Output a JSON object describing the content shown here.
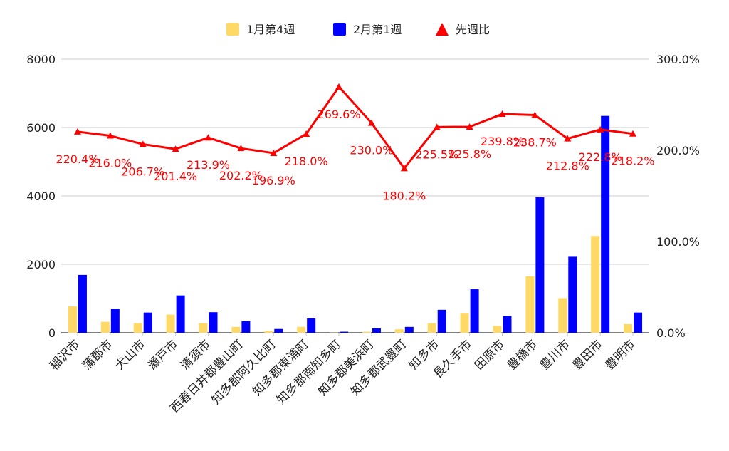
{
  "chart_data": {
    "type": "bar",
    "categories": [
      "稲沢市",
      "蒲郡市",
      "犬山市",
      "瀬戸市",
      "清須市",
      "西春日井郡豊山町",
      "知多郡阿久比町",
      "知多郡東浦町",
      "知多郡南知多町",
      "知多郡美浜町",
      "知多郡武豊町",
      "知多市",
      "長久手市",
      "田原市",
      "豊橋市",
      "豊川市",
      "豊田市",
      "豊明市"
    ],
    "series": [
      {
        "name": "1月第4週",
        "type": "bar",
        "axis": "left",
        "color": "#FFD966",
        "values": [
          770,
          320,
          280,
          530,
          280,
          170,
          60,
          170,
          5,
          30,
          100,
          280,
          560,
          200,
          1650,
          1010,
          2830,
          250
        ]
      },
      {
        "name": "2月第1週",
        "type": "bar",
        "axis": "left",
        "color": "#0000FF",
        "values": [
          1690,
          700,
          590,
          1090,
          600,
          340,
          110,
          420,
          30,
          130,
          170,
          670,
          1270,
          490,
          3960,
          2220,
          6340,
          590
        ]
      },
      {
        "name": "先週比",
        "type": "line",
        "axis": "right",
        "color": "#FF0000",
        "marker": "triangle",
        "values": [
          220.4,
          216.0,
          206.7,
          201.4,
          213.9,
          202.2,
          196.9,
          218.0,
          269.6,
          230.0,
          180.2,
          225.5,
          225.8,
          239.8,
          238.7,
          212.8,
          222.8,
          218.2
        ],
        "labels": [
          "220.4%",
          "216.0%",
          "206.7%",
          "201.4%",
          "213.9%",
          "202.2%",
          "196.9%",
          "218.0%",
          "269.6%",
          "230.0%",
          "180.2%",
          "225.5%",
          "225.8%",
          "239.8%",
          "238.7%",
          "212.8%",
          "222.8%",
          "218.2%"
        ]
      }
    ],
    "y_left": {
      "min": 0,
      "max": 8000,
      "ticks": [
        "0",
        "2000",
        "4000",
        "6000",
        "8000"
      ]
    },
    "y_right": {
      "min": 0,
      "max": 300,
      "ticks": [
        "0.0%",
        "100.0%",
        "200.0%",
        "300.0%"
      ]
    },
    "grid": true,
    "legend_position": "top-center"
  }
}
